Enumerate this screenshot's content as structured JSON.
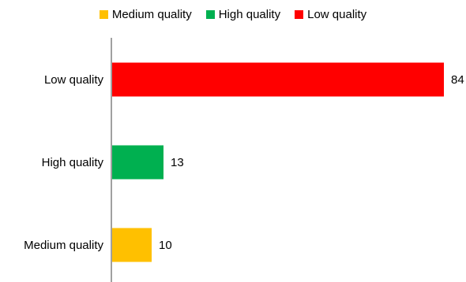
{
  "chart_data": {
    "type": "bar",
    "orientation": "horizontal",
    "categories": [
      "Low quality",
      "High quality",
      "Medium quality"
    ],
    "values": [
      84,
      13,
      10
    ],
    "colors": [
      "#ff0000",
      "#00b050",
      "#ffc000"
    ],
    "legend": {
      "placement": "top",
      "items": [
        {
          "label": "Medium quality",
          "color": "#ffc000"
        },
        {
          "label": "High quality",
          "color": "#00b050"
        },
        {
          "label": "Low quality",
          "color": "#ff0000"
        }
      ]
    },
    "xlim": [
      0,
      84
    ],
    "grid": false,
    "title": "",
    "xlabel": "",
    "ylabel": ""
  }
}
